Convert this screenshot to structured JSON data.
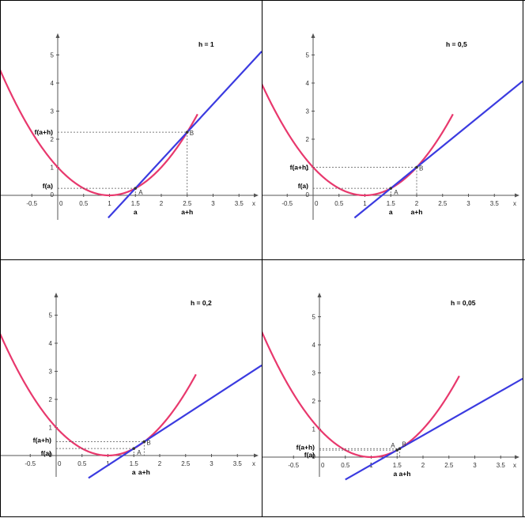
{
  "chart_data": [
    {
      "type": "line",
      "h_label": "h = 1",
      "function": {
        "a": 1,
        "b": 0,
        "c": 0,
        "form": "(x-1)^2"
      },
      "a": 1.5,
      "h": 1,
      "f_a": 0.25,
      "f_a_h": 2.25,
      "secant_slope": 2,
      "xlim": [
        -0.99,
        4
      ],
      "ylim": [
        -0.8,
        5.7
      ],
      "x_ticks": [
        "-0.5",
        "0",
        "0.5",
        "1",
        "1.5",
        "2",
        "2.5",
        "3",
        "3.5"
      ],
      "x_tick_values": [
        -0.5,
        0,
        0.5,
        1,
        1.5,
        2,
        2.5,
        3,
        3.5
      ],
      "y_ticks": [
        "0",
        "1",
        "2",
        "3",
        "4",
        "5"
      ],
      "y_tick_values": [
        0,
        1,
        2,
        3,
        4,
        5
      ],
      "xlabel": "x",
      "point_labels": {
        "A": "A",
        "B": "B"
      },
      "axis_labels": {
        "a": "a",
        "a_h": "a+h",
        "f_a": "f(a)",
        "f_a_h": "f(a+h)"
      },
      "colors": {
        "curve": "#e8386d",
        "secant": "#3b3be0"
      }
    },
    {
      "type": "line",
      "h_label": "h = 0,5",
      "function": {
        "a": 1,
        "b": 0,
        "c": 0,
        "form": "(x-1)^2"
      },
      "a": 1.5,
      "h": 0.5,
      "f_a": 0.25,
      "f_a_h": 1,
      "secant_slope": 1.5,
      "xlim": [
        -0.99,
        4
      ],
      "ylim": [
        -0.8,
        5.7
      ],
      "x_ticks": [
        "-0.5",
        "0",
        "0.5",
        "1",
        "1.5",
        "2",
        "2.5",
        "3",
        "3.5"
      ],
      "x_tick_values": [
        -0.5,
        0,
        0.5,
        1,
        1.5,
        2,
        2.5,
        3,
        3.5
      ],
      "y_ticks": [
        "0",
        "1",
        "2",
        "3",
        "4",
        "5"
      ],
      "y_tick_values": [
        0,
        1,
        2,
        3,
        4,
        5
      ],
      "xlabel": "x",
      "point_labels": {
        "A": "A",
        "B": "B"
      },
      "axis_labels": {
        "a": "a",
        "a_h": "a+h",
        "f_a": "f(a)",
        "f_a_h": "f(a+h)"
      },
      "colors": {
        "curve": "#e8386d",
        "secant": "#3b3be0"
      }
    },
    {
      "type": "line",
      "h_label": "h = 0,2",
      "function": {
        "a": 1,
        "b": 0,
        "c": 0,
        "form": "(x-1)^2"
      },
      "a": 1.5,
      "h": 0.2,
      "f_a": 0.25,
      "f_a_h": 0.49,
      "secant_slope": 1.2,
      "xlim": [
        -0.99,
        4
      ],
      "ylim": [
        -0.8,
        5.7
      ],
      "x_ticks": [
        "-0.5",
        "0",
        "0.5",
        "1",
        "1.5",
        "2",
        "2.5",
        "3",
        "3.5"
      ],
      "x_tick_values": [
        -0.5,
        0,
        0.5,
        1,
        1.5,
        2,
        2.5,
        3,
        3.5
      ],
      "y_ticks": [
        "0",
        "1",
        "2",
        "3",
        "4",
        "5"
      ],
      "y_tick_values": [
        0,
        1,
        2,
        3,
        4,
        5
      ],
      "xlabel": "x",
      "point_labels": {
        "A": "A",
        "B": "B"
      },
      "axis_labels": {
        "a": "a",
        "a_h": "a+h",
        "f_a": "f(a)",
        "f_a_h": "f(a+h)"
      },
      "colors": {
        "curve": "#e8386d",
        "secant": "#3b3be0"
      }
    },
    {
      "type": "line",
      "h_label": "h = 0,05",
      "function": {
        "a": 1,
        "b": 0,
        "c": 0,
        "form": "(x-1)^2"
      },
      "a": 1.5,
      "h": 0.05,
      "f_a": 0.25,
      "f_a_h": 0.3025,
      "secant_slope": 1.05,
      "xlim": [
        -0.99,
        4
      ],
      "ylim": [
        -0.8,
        5.7
      ],
      "x_ticks": [
        "-0.5",
        "0",
        "0.5",
        "1",
        "1.5",
        "2",
        "2.5",
        "3",
        "3.5"
      ],
      "x_tick_values": [
        -0.5,
        0,
        0.5,
        1,
        1.5,
        2,
        2.5,
        3,
        3.5
      ],
      "y_ticks": [
        "0",
        "1",
        "2",
        "3",
        "4",
        "5"
      ],
      "y_tick_values": [
        0,
        1,
        2,
        3,
        4,
        5
      ],
      "xlabel": "x",
      "point_labels": {
        "A": "A",
        "B": "B"
      },
      "axis_labels": {
        "a": "a",
        "a_h": "a+h",
        "f_a": "f(a)",
        "f_a_h": "f(a+h)"
      },
      "colors": {
        "curve": "#e8386d",
        "secant": "#3b3be0"
      }
    }
  ]
}
